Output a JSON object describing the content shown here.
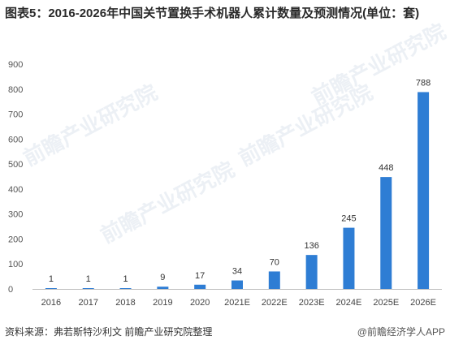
{
  "title": "图表5：2016-2026年中国关节置换手术机器人累计数量及预测情况(单位：套)",
  "watermark": "前瞻产业研究院",
  "source": "资料来源：弗若斯特沙利文 前瞻产业研究院整理",
  "brand": "@前瞻经济学人APP",
  "chart_data": {
    "type": "bar",
    "categories": [
      "2016",
      "2017",
      "2018",
      "2019",
      "2020",
      "2021E",
      "2022E",
      "2023E",
      "2024E",
      "2025E",
      "2026E"
    ],
    "values": [
      1,
      1,
      1,
      9,
      17,
      34,
      70,
      136,
      245,
      448,
      788
    ],
    "ylim": [
      0,
      900
    ],
    "yticks": [
      0,
      100,
      200,
      300,
      400,
      500,
      600,
      700,
      800,
      900
    ],
    "bar_color": "#2e7dd4",
    "grid": false,
    "legend": "none"
  }
}
